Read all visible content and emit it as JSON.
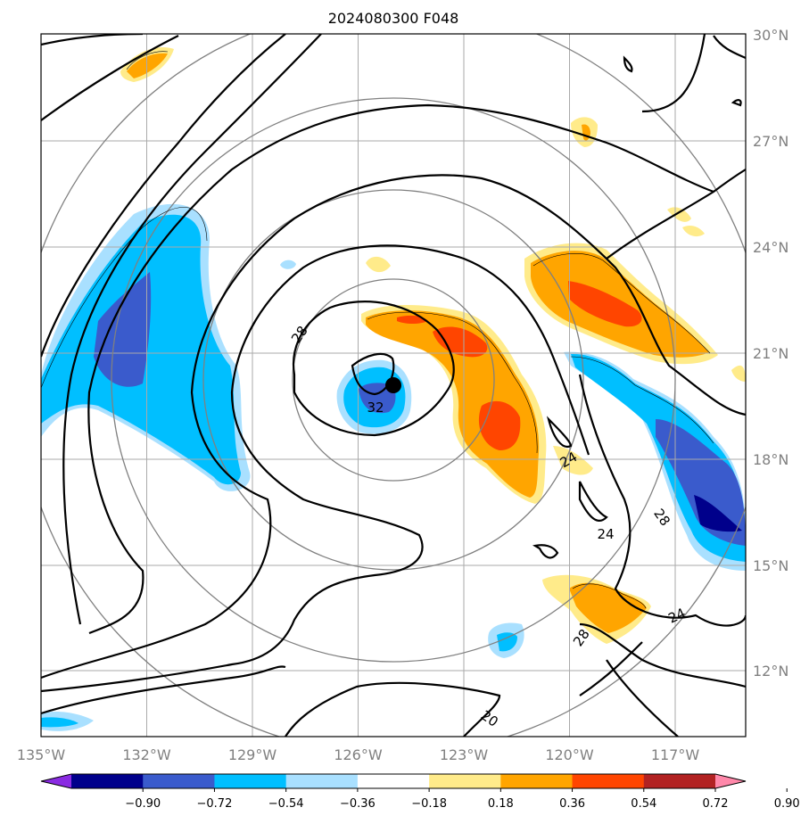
{
  "title": "2024080300 F048",
  "colors": {
    "grid": "#aaaaaa",
    "range_rings": "#808080",
    "contour": "#000000",
    "ticks": "#808080"
  },
  "map": {
    "lon_ticks": [
      "135°W",
      "132°W",
      "129°W",
      "126°W",
      "123°W",
      "120°W",
      "117°W"
    ],
    "lat_ticks": [
      "30°N",
      "27°N",
      "24°N",
      "21°N",
      "18°N",
      "15°N",
      "12°N"
    ],
    "lon_range": [
      -135,
      -115
    ],
    "lat_range": [
      10,
      30
    ],
    "center_marker": {
      "lon": -125,
      "lat": 20.2
    },
    "contour_labels": [
      "28",
      "32",
      "24",
      "24",
      "28",
      "24",
      "28",
      "20"
    ]
  },
  "colorbar": {
    "ticks": [
      "−0.90",
      "−0.72",
      "−0.54",
      "−0.36",
      "−0.18",
      "0.18",
      "0.36",
      "0.54",
      "0.72",
      "0.90"
    ],
    "colors": [
      "#8a2be2",
      "#00008b",
      "#3a5bcc",
      "#00bfff",
      "#a9e0ff",
      "#ffffff",
      "#ffeb8a",
      "#ffa500",
      "#ff4500",
      "#b22222",
      "#ff88aa"
    ]
  }
}
